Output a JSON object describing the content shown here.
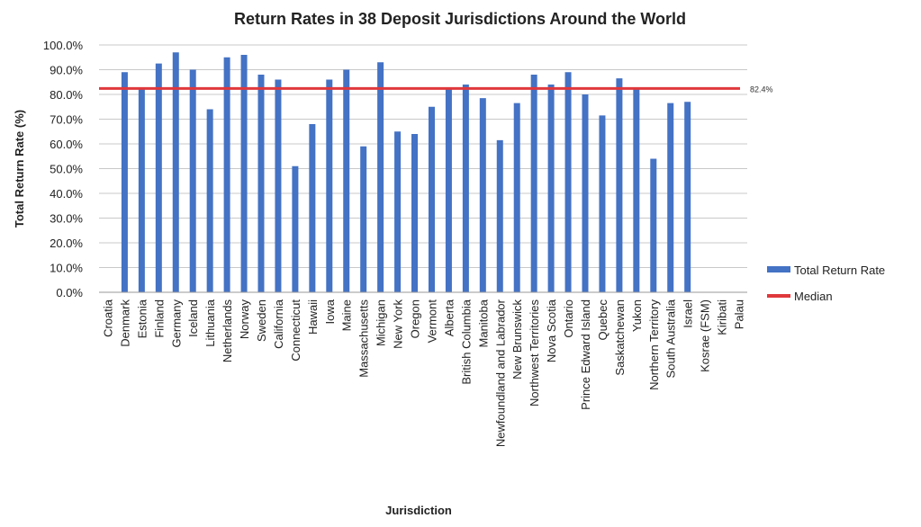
{
  "chart_data": {
    "type": "bar",
    "title": "Return Rates in 38 Deposit Jurisdictions Around the World",
    "xlabel": "Jurisdiction",
    "ylabel": "Total Return Rate (%)",
    "ylim": [
      0,
      100
    ],
    "yticks": [
      "0.0%",
      "10.0%",
      "20.0%",
      "30.0%",
      "40.0%",
      "50.0%",
      "60.0%",
      "70.0%",
      "80.0%",
      "90.0%",
      "100.0%"
    ],
    "grid": true,
    "legend_position": "right",
    "categories": [
      "Croatia",
      "Denmark",
      "Estonia",
      "Finland",
      "Germany",
      "Iceland",
      "Lithuania",
      "Netherlands",
      "Norway",
      "Sweden",
      "California",
      "Connecticut",
      "Hawaii",
      "Iowa",
      "Maine",
      "Massachusetts",
      "Michigan",
      "New York",
      "Oregon",
      "Vermont",
      "Alberta",
      "British Columbia",
      "Manitoba",
      "Newfoundland and Labrador",
      "New Brunswick",
      "Northwest Territories",
      "Nova Scotia",
      "Ontario",
      "Prince Edward Island",
      "Quebec",
      "Saskatchewan",
      "Yukon",
      "Northern Territory",
      "South Australia",
      "Israel",
      "Kosrae (FSM)",
      "Kiribati",
      "Palau"
    ],
    "series": [
      {
        "name": "Total Return Rate",
        "color": "#4472C4",
        "values": [
          null,
          89,
          82,
          92.5,
          97,
          90,
          74,
          95,
          96,
          88,
          86,
          51,
          68,
          86,
          90,
          59,
          93,
          65,
          64,
          75,
          82,
          84,
          78.5,
          61.5,
          76.5,
          88,
          84,
          89,
          80,
          71.5,
          86.5,
          82,
          54,
          76.5,
          77,
          null,
          null,
          null
        ]
      }
    ],
    "median": {
      "name": "Median",
      "value": 82.4,
      "label": "82.4%",
      "color": "#E0383C"
    }
  }
}
